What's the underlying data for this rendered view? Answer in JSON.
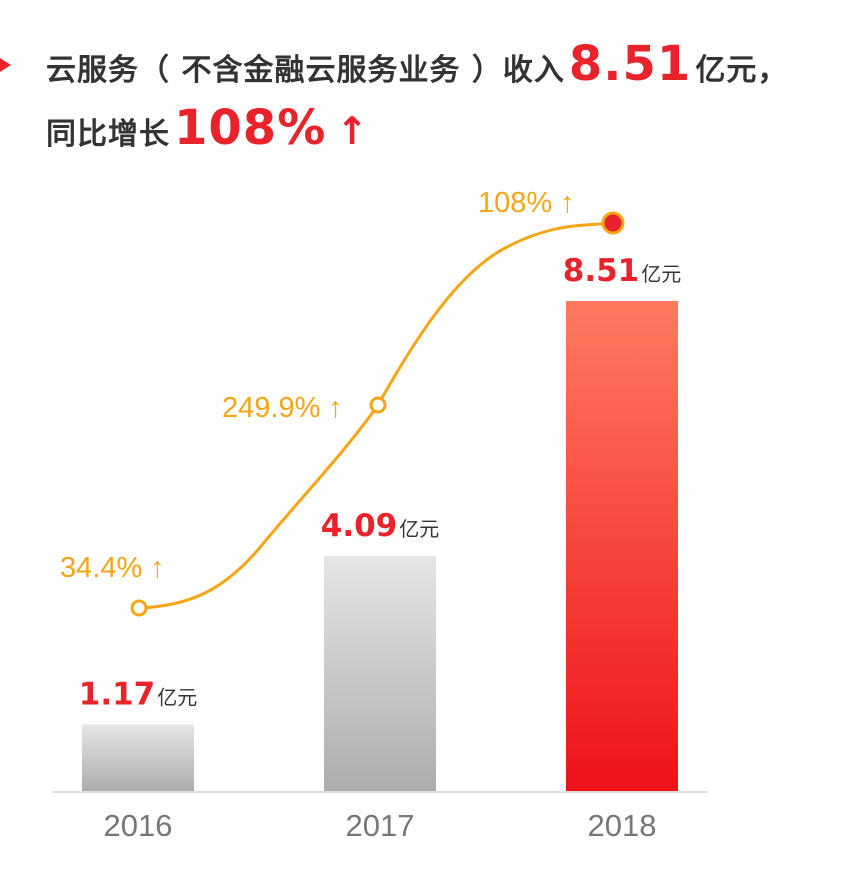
{
  "headline": {
    "line1_prefix": "云服务（ 不含金融云服务业务 ）收入",
    "line1_value": "8.51",
    "line1_suffix": "亿元，",
    "line2_prefix": "同比增长",
    "line2_value": "108%",
    "line2_arrow": "↑"
  },
  "colors": {
    "accent_red": "#e8232b",
    "growth_orange": "#f5a516",
    "text_dark": "#333333",
    "axis_gray": "#777777"
  },
  "chart_data": {
    "type": "bar",
    "categories": [
      "2016",
      "2017",
      "2018"
    ],
    "series": [
      {
        "values": [
          1.17,
          4.09,
          8.51
        ],
        "unit": "亿元",
        "labels": [
          "1.17",
          "4.09",
          "8.51"
        ],
        "label_unit": "亿元"
      }
    ],
    "growth_line": {
      "type": "line",
      "values": [
        34.4,
        249.9,
        108
      ],
      "labels": [
        "34.4% ↑",
        "249.9% ↑",
        "108% ↑"
      ]
    },
    "ylim": [
      0,
      10
    ],
    "grid": false,
    "title": "",
    "xlabel": "",
    "ylabel": ""
  }
}
